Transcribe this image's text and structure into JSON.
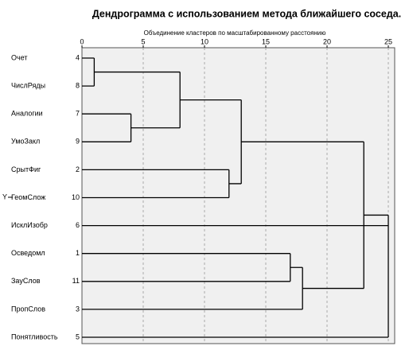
{
  "chart_data": {
    "type": "dendrogram",
    "title": "Дендрограмма с использованием метода ближайшего соседа.",
    "x_label": "Объединение кластеров по масштабированному расстоянию",
    "y_label": "Y",
    "xlim": [
      0,
      25
    ],
    "xticks": [
      0,
      5,
      10,
      15,
      20,
      25
    ],
    "grid": true,
    "color": "#000000",
    "leaves": [
      {
        "label": "Очет",
        "id": "4"
      },
      {
        "label": "ЧислРяды",
        "id": "8"
      },
      {
        "label": "Аналогии",
        "id": "7"
      },
      {
        "label": "УмоЗакл",
        "id": "9"
      },
      {
        "label": "СрытФиг",
        "id": "2"
      },
      {
        "label": "ГеомСлож",
        "id": "10"
      },
      {
        "label": "ИсклИзобр",
        "id": "6"
      },
      {
        "label": "Осведомл",
        "id": "1"
      },
      {
        "label": "ЗауСлов",
        "id": "11"
      },
      {
        "label": "ПропСлов",
        "id": "3"
      },
      {
        "label": "Понятливость",
        "id": "5"
      }
    ],
    "merges": [
      {
        "children": [
          0,
          1
        ],
        "height": 1
      },
      {
        "children": [
          2,
          3
        ],
        "height": 4
      },
      {
        "children": [
          11,
          12
        ],
        "height": 8
      },
      {
        "children": [
          4,
          5
        ],
        "height": 12
      },
      {
        "children": [
          13,
          14
        ],
        "height": 13
      },
      {
        "children": [
          7,
          8
        ],
        "height": 17
      },
      {
        "children": [
          16,
          9
        ],
        "height": 18
      },
      {
        "children": [
          15,
          17
        ],
        "height": 23
      },
      {
        "children": [
          6,
          18,
          10
        ],
        "height": 25
      }
    ]
  }
}
